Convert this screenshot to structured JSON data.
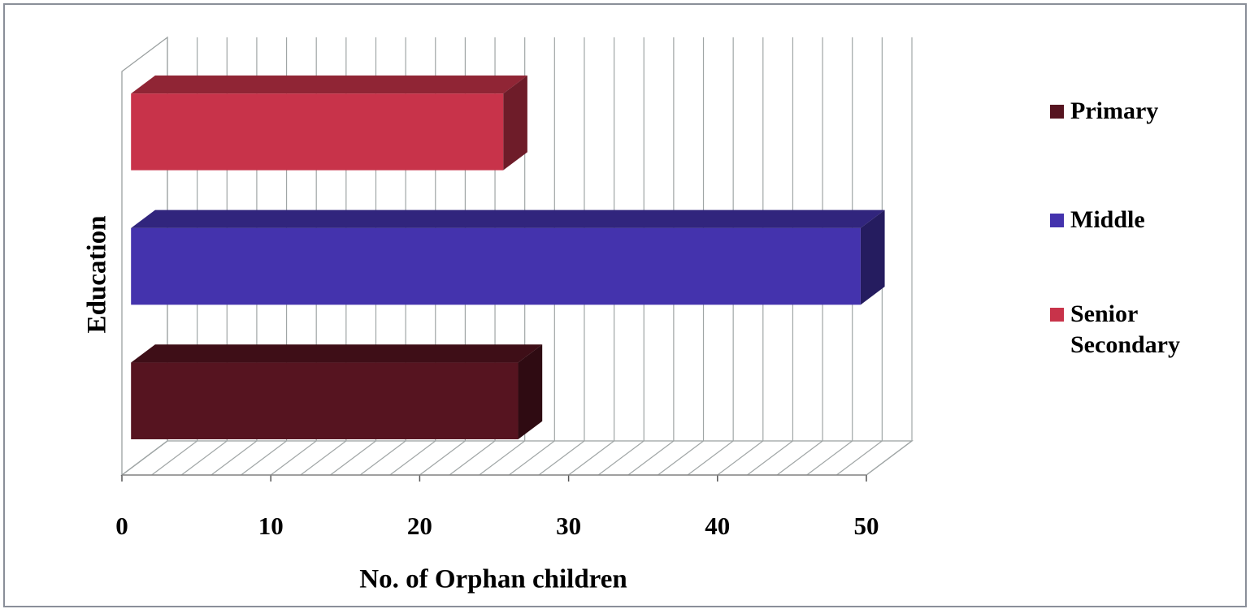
{
  "chart_data": {
    "type": "bar3d-horizontal",
    "x_label": "No. of Orphan children",
    "y_label": "Education",
    "categories": [
      "Primary",
      "Middle",
      "Senior Secondary"
    ],
    "values": [
      26,
      49,
      25
    ],
    "colors": [
      "#561420",
      "#4433ad",
      "#c8334a"
    ],
    "xlim": [
      0,
      50
    ],
    "xticks": [
      0,
      10,
      20,
      30,
      40,
      50
    ],
    "minor_xticks": [
      2,
      4,
      6,
      8,
      12,
      14,
      16,
      18,
      22,
      24,
      26,
      28,
      32,
      34,
      36,
      38,
      42,
      44,
      46,
      48
    ],
    "grid": true
  }
}
